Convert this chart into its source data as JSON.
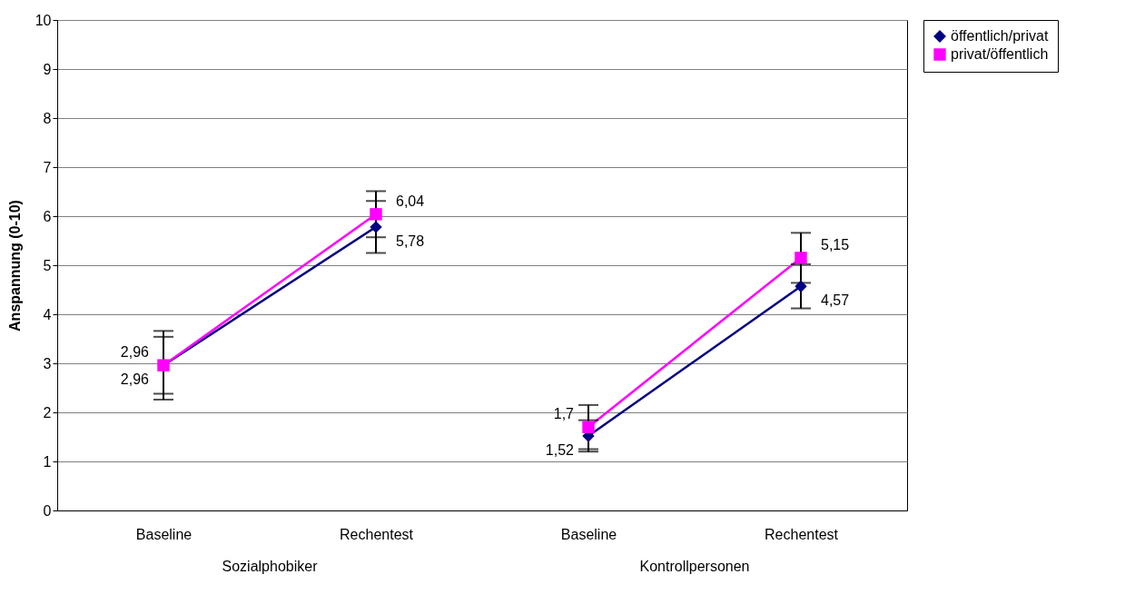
{
  "chart_data": {
    "type": "line",
    "ylabel": "Anspannung (0-10)",
    "categories": [
      "Baseline",
      "Rechentest",
      "Baseline",
      "Rechentest"
    ],
    "annotations": [
      "Sozialphobiker",
      "Kontrollpersonen"
    ],
    "series": [
      {
        "name": "öffentlich/privat",
        "color": "#000080",
        "marker": "diamond",
        "values": [
          2.96,
          5.78,
          1.52,
          4.57
        ],
        "errors": [
          0.58,
          0.53,
          0.32,
          0.45
        ],
        "value_labels": [
          "2,96",
          "5,78",
          "1,52",
          "4,57"
        ]
      },
      {
        "name": "privat/öffentlich",
        "color": "#ff00ff",
        "marker": "square",
        "values": [
          2.96,
          6.04,
          1.7,
          5.15
        ],
        "errors": [
          0.7,
          0.47,
          0.45,
          0.51
        ],
        "value_labels": [
          "2,96",
          "6,04",
          "1,7",
          "5,15"
        ]
      }
    ],
    "ylim": [
      0,
      10
    ],
    "yticks": [
      0,
      1,
      2,
      3,
      4,
      5,
      6,
      7,
      8,
      9,
      10
    ],
    "grid": "y",
    "legend": "right"
  }
}
